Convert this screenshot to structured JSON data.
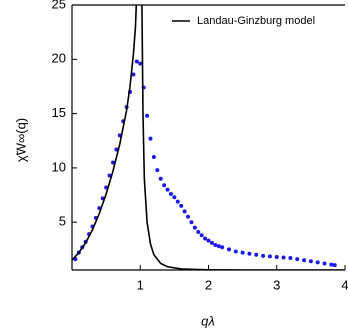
{
  "chart_data": {
    "type": "scatter",
    "xlabel": "qλ",
    "ylabel": "χ̃W∞(q)",
    "xlim": [
      0,
      4
    ],
    "xticks": [
      1,
      2,
      3,
      4
    ],
    "ylim": [
      0.6,
      25
    ],
    "yticks": [
      5,
      10,
      15,
      20,
      25
    ],
    "legend": "upper right",
    "series": [
      {
        "color": "#1a1aee",
        "x": [
          0.05,
          0.1,
          0.15,
          0.2,
          0.25,
          0.3,
          0.35,
          0.4,
          0.45,
          0.5,
          0.55,
          0.6,
          0.65,
          0.7,
          0.75,
          0.8,
          0.85,
          0.9,
          0.95,
          1.0,
          1.05,
          1.1,
          1.15,
          1.2,
          1.25,
          1.3,
          1.35,
          1.4,
          1.45,
          1.5,
          1.55,
          1.6,
          1.65,
          1.7,
          1.75,
          1.8,
          1.85,
          1.9,
          1.95,
          2.0,
          2.05,
          2.1,
          2.15,
          2.2,
          2.3,
          2.4,
          2.5,
          2.6,
          2.7,
          2.8,
          2.9,
          3.0,
          3.1,
          3.2,
          3.3,
          3.4,
          3.5,
          3.6,
          3.7,
          3.8,
          3.85
        ],
        "values": [
          1.6,
          2.2,
          2.7,
          3.2,
          3.9,
          4.6,
          5.4,
          6.3,
          7.2,
          8.2,
          9.3,
          10.5,
          11.7,
          13.0,
          14.3,
          15.6,
          17.0,
          18.6,
          19.8,
          19.6,
          17.4,
          14.8,
          12.7,
          11.0,
          9.8,
          9.0,
          8.4,
          8.0,
          7.6,
          7.3,
          6.9,
          6.5,
          6.0,
          5.5,
          5.0,
          4.5,
          4.1,
          3.8,
          3.5,
          3.3,
          3.1,
          2.9,
          2.8,
          2.7,
          2.5,
          2.3,
          2.2,
          2.1,
          2.0,
          1.9,
          1.85,
          1.8,
          1.75,
          1.7,
          1.6,
          1.5,
          1.4,
          1.3,
          1.2,
          1.1,
          1.05
        ]
      },
      {
        "name": "Landau-Ginzburg model",
        "type": "line",
        "color": "#000000",
        "x": [
          0,
          0.1,
          0.2,
          0.3,
          0.4,
          0.5,
          0.6,
          0.7,
          0.8,
          0.85,
          0.9,
          0.93,
          0.96,
          1.0,
          1.02,
          1.04,
          1.06,
          1.1,
          1.15,
          1.2,
          1.3,
          1.4,
          1.6,
          1.8,
          2.0,
          2.5,
          3.0,
          4.0
        ],
        "values": [
          1.5,
          2.2,
          3.1,
          4.3,
          5.8,
          7.6,
          9.7,
          12.2,
          15.3,
          17.5,
          20.5,
          23,
          28,
          null,
          28,
          15,
          9,
          5,
          3,
          2,
          1.2,
          0.9,
          0.7,
          0.65,
          0.62,
          0.6,
          0.6,
          0.6
        ]
      }
    ]
  }
}
